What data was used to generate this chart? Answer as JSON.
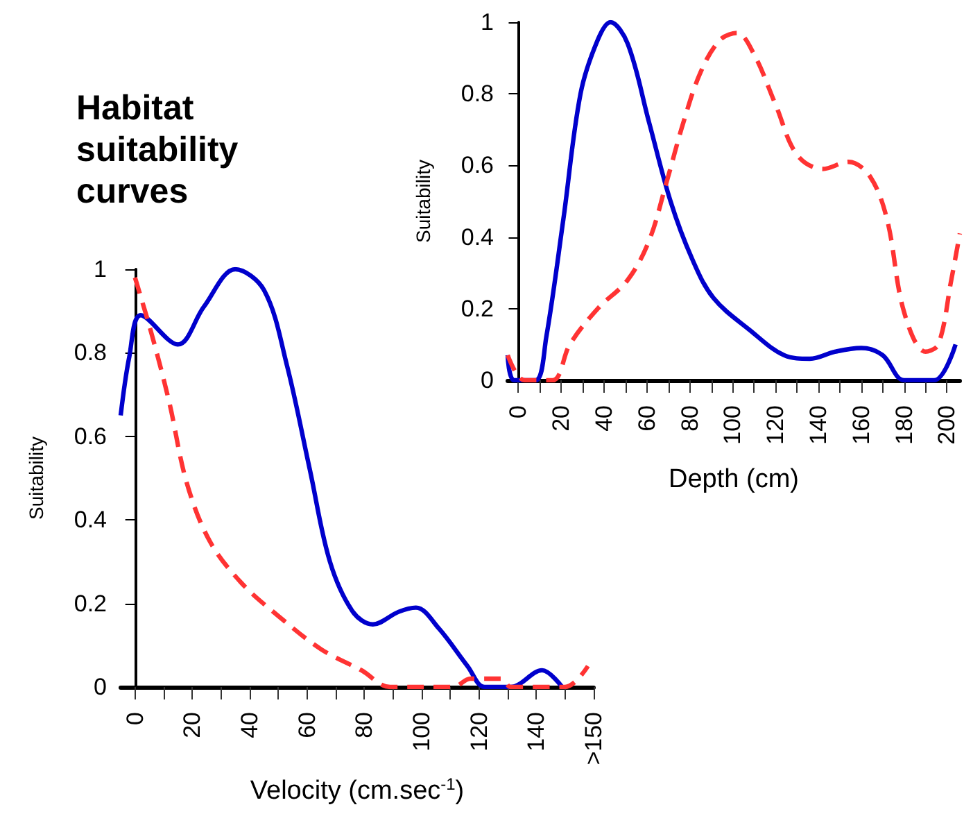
{
  "chart_data": [
    {
      "type": "line",
      "title": "Habitat suitability curves",
      "xlabel": "Velocity (cm.sec$^{-1}$)",
      "ylabel": "Suitability",
      "grid": false,
      "marker": "none",
      "xlim": [
        -5,
        160
      ],
      "xticks": [
        0,
        {
          "value": 10,
          "label": null
        },
        20,
        {
          "value": 30,
          "label": null
        },
        40,
        {
          "value": 50,
          "label": null
        },
        60,
        {
          "value": 70,
          "label": null
        },
        80,
        {
          "value": 90,
          "label": null
        },
        100,
        {
          "value": 110,
          "label": null
        },
        120,
        {
          "value": 130,
          "label": null
        },
        140,
        {
          "value": 150,
          "label": null
        },
        {
          "value": 160,
          "label": ">150"
        }
      ],
      "ylim": [
        0,
        1
      ],
      "yticks": [
        0,
        0.2,
        0.4,
        0.6,
        0.8,
        1
      ],
      "series": [
        {
          "color": "#0000cc",
          "line_style": "solid",
          "x": [
            -5,
            -2,
            2,
            15,
            24,
            35,
            45,
            53,
            61,
            68,
            76,
            83,
            92,
            98,
            106,
            116,
            122,
            131,
            142,
            149
          ],
          "values": [
            0.65,
            0.79,
            0.89,
            0.82,
            0.91,
            1.0,
            0.95,
            0.77,
            0.52,
            0.3,
            0.18,
            0.15,
            0.18,
            0.19,
            0.14,
            0.05,
            0,
            0,
            0.04,
            0
          ]
        },
        {
          "color": "#ff3333",
          "line_style": "dashed",
          "x": [
            0,
            6,
            12,
            18,
            26,
            37,
            50,
            65,
            79,
            89,
            111,
            117,
            128,
            131,
            150,
            158
          ],
          "values": [
            0.98,
            0.84,
            0.68,
            0.49,
            0.35,
            0.25,
            0.17,
            0.09,
            0.04,
            0,
            0,
            0.02,
            0.02,
            0,
            0,
            0.05
          ]
        }
      ]
    },
    {
      "type": "line",
      "xlabel": "Depth (cm)",
      "ylabel": "Suitability",
      "grid": false,
      "marker": "none",
      "xlim": [
        -5,
        206
      ],
      "xticks": [
        0,
        {
          "value": 10,
          "label": null
        },
        20,
        {
          "value": 30,
          "label": null
        },
        40,
        {
          "value": 50,
          "label": null
        },
        60,
        {
          "value": 70,
          "label": null
        },
        80,
        {
          "value": 90,
          "label": null
        },
        100,
        {
          "value": 110,
          "label": null
        },
        120,
        {
          "value": 130,
          "label": null
        },
        140,
        {
          "value": 150,
          "label": null
        },
        160,
        {
          "value": 170,
          "label": null
        },
        180,
        {
          "value": 190,
          "label": null
        },
        200
      ],
      "ylim": [
        0,
        1
      ],
      "yticks": [
        0,
        0.2,
        0.4,
        0.6,
        0.8,
        1
      ],
      "series": [
        {
          "color": "#0000cc",
          "line_style": "solid",
          "x": [
            -5,
            -2,
            8,
            13,
            21,
            29,
            37,
            43,
            51,
            61,
            71,
            81,
            91,
            108,
            124,
            136,
            148,
            160,
            170,
            180,
            194,
            204
          ],
          "values": [
            0.07,
            0,
            0,
            0.12,
            0.45,
            0.8,
            0.95,
            1.0,
            0.94,
            0.72,
            0.5,
            0.34,
            0.23,
            0.14,
            0.07,
            0.06,
            0.08,
            0.09,
            0.07,
            0,
            0,
            0.1
          ]
        },
        {
          "color": "#ff3333",
          "line_style": "dashed",
          "x": [
            -5,
            -1,
            3,
            16,
            24,
            37,
            51,
            61,
            69,
            77,
            85,
            94,
            102,
            110,
            120,
            130,
            142,
            154,
            164,
            172,
            180,
            190,
            196,
            202,
            206
          ],
          "values": [
            0.07,
            0.02,
            0,
            0,
            0.1,
            0.2,
            0.28,
            0.39,
            0.55,
            0.72,
            0.86,
            0.95,
            0.97,
            0.91,
            0.77,
            0.63,
            0.59,
            0.61,
            0.57,
            0.45,
            0.19,
            0.08,
            0.1,
            0.28,
            0.41
          ]
        }
      ]
    }
  ]
}
